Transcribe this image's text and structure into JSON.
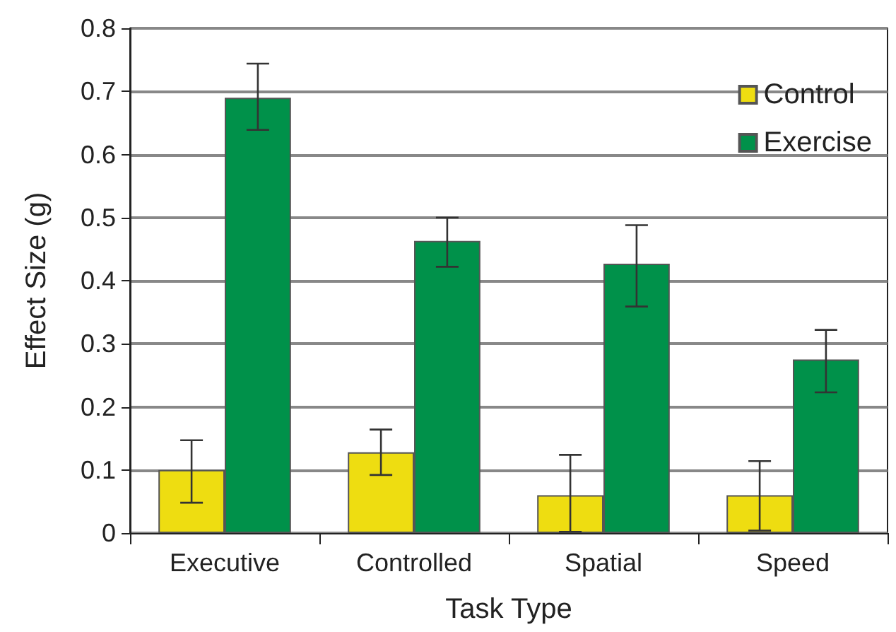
{
  "chart_data": {
    "type": "bar",
    "xlabel": "Task Type",
    "ylabel": "Effect Size (g)",
    "categories": [
      "Executive",
      "Controlled",
      "Spatial",
      "Speed"
    ],
    "series": [
      {
        "name": "Control",
        "color": "#eedd11",
        "values": [
          0.1,
          0.128,
          0.06,
          0.06
        ],
        "errors": [
          [
            0.048,
            0.147
          ],
          [
            0.092,
            0.164
          ],
          [
            0.002,
            0.124
          ],
          [
            0.004,
            0.114
          ]
        ]
      },
      {
        "name": "Exercise",
        "color": "#00914a",
        "values": [
          0.69,
          0.463,
          0.427,
          0.275
        ],
        "errors": [
          [
            0.639,
            0.744
          ],
          [
            0.422,
            0.5
          ],
          [
            0.359,
            0.488
          ],
          [
            0.223,
            0.322
          ]
        ]
      }
    ],
    "ylim": [
      0,
      0.8
    ],
    "yticks": [
      0,
      0.1,
      0.2,
      0.3,
      0.4,
      0.5,
      0.6,
      0.7,
      0.8
    ],
    "grid": "y",
    "legend": "top right"
  }
}
